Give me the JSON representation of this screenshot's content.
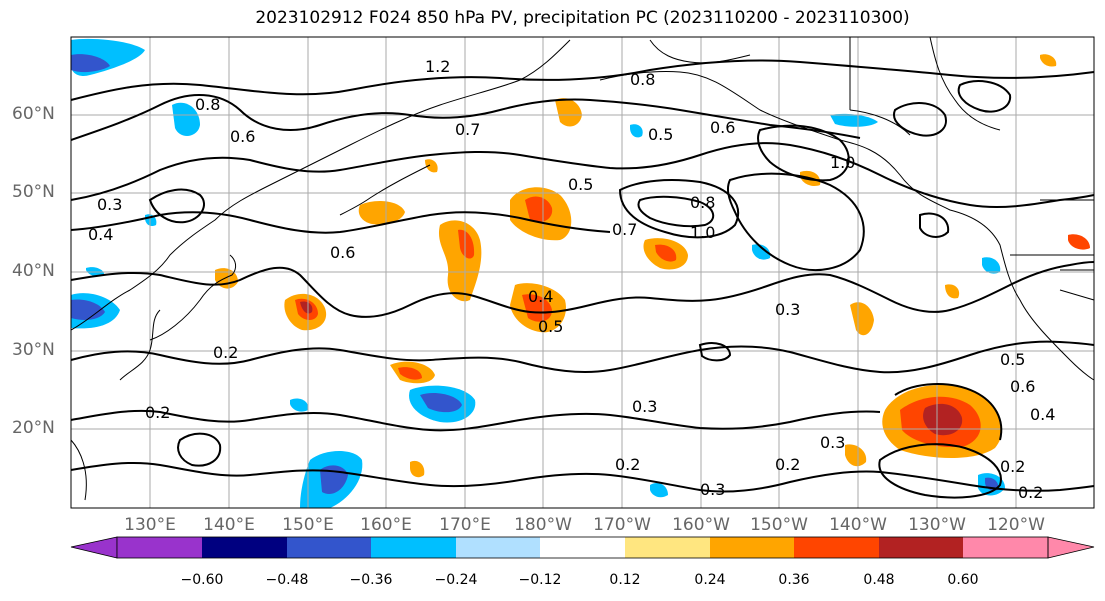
{
  "title": "2023102912 F024 850 hPa PV, precipitation PC (2023110200 - 2023110300)",
  "lat_labels": [
    "60°N",
    "50°N",
    "40°N",
    "30°N",
    "20°N"
  ],
  "lon_labels": [
    "130°E",
    "140°E",
    "150°E",
    "160°E",
    "170°E",
    "180°W",
    "170°W",
    "160°W",
    "150°W",
    "140°W",
    "130°W",
    "120°W"
  ],
  "contour_labels": [
    "1.2",
    "0.8",
    "0.6",
    "0.5",
    "0.6",
    "1.0",
    "0.8",
    "0.7",
    "1.0",
    "0.3",
    "0.4",
    "0.6",
    "0.5",
    "0.4",
    "0.2",
    "0.3",
    "0.3",
    "0.2",
    "0.3",
    "0.2",
    "0.3",
    "0.2",
    "0.5",
    "0.6",
    "0.4",
    "0.2",
    "0.2",
    "0.5",
    "0.8",
    "0.7"
  ],
  "colorbar": {
    "ticks": [
      "−0.60",
      "−0.48",
      "−0.36",
      "−0.24",
      "−0.12",
      "0.12",
      "0.24",
      "0.36",
      "0.48",
      "0.60"
    ],
    "colors": [
      "#9933cc",
      "#000080",
      "#3355cc",
      "#00bfff",
      "#b0e0ff",
      "#ffffff",
      "#ffe680",
      "#ffa500",
      "#ff4500",
      "#b22222",
      "#ff88aa"
    ]
  }
}
